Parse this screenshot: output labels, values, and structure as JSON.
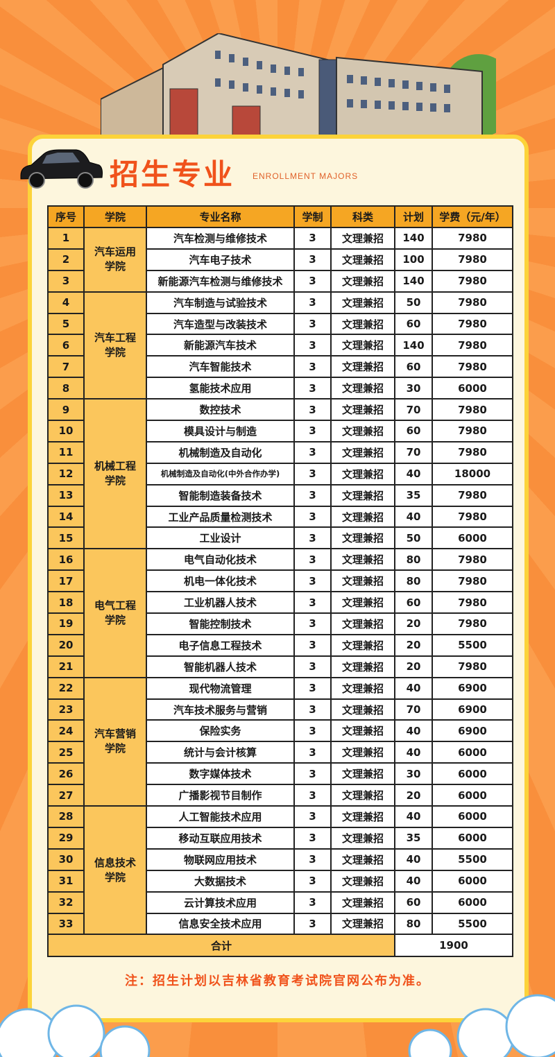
{
  "header": {
    "title": "招生专业",
    "subtitle": "ENROLLMENT MAJORS"
  },
  "table": {
    "columns": [
      "序号",
      "学院",
      "专业名称",
      "学制",
      "科类",
      "计划",
      "学费（元/年）"
    ],
    "colleges": [
      {
        "name": "汽车运用学院",
        "majors": [
          {
            "no": "1",
            "name": "汽车检测与维修技术",
            "years": "3",
            "category": "文理兼招",
            "plan": "140",
            "fee": "7980"
          },
          {
            "no": "2",
            "name": "汽车电子技术",
            "years": "3",
            "category": "文理兼招",
            "plan": "100",
            "fee": "7980"
          },
          {
            "no": "3",
            "name": "新能源汽车检测与维修技术",
            "years": "3",
            "category": "文理兼招",
            "plan": "140",
            "fee": "7980"
          }
        ]
      },
      {
        "name": "汽车工程学院",
        "majors": [
          {
            "no": "4",
            "name": "汽车制造与试验技术",
            "years": "3",
            "category": "文理兼招",
            "plan": "50",
            "fee": "7980"
          },
          {
            "no": "5",
            "name": "汽车造型与改装技术",
            "years": "3",
            "category": "文理兼招",
            "plan": "60",
            "fee": "7980"
          },
          {
            "no": "6",
            "name": "新能源汽车技术",
            "years": "3",
            "category": "文理兼招",
            "plan": "140",
            "fee": "7980"
          },
          {
            "no": "7",
            "name": "汽车智能技术",
            "years": "3",
            "category": "文理兼招",
            "plan": "60",
            "fee": "7980"
          },
          {
            "no": "8",
            "name": "氢能技术应用",
            "years": "3",
            "category": "文理兼招",
            "plan": "30",
            "fee": "6000"
          }
        ]
      },
      {
        "name": "机械工程学院",
        "majors": [
          {
            "no": "9",
            "name": "数控技术",
            "years": "3",
            "category": "文理兼招",
            "plan": "70",
            "fee": "7980"
          },
          {
            "no": "10",
            "name": "模具设计与制造",
            "years": "3",
            "category": "文理兼招",
            "plan": "60",
            "fee": "7980"
          },
          {
            "no": "11",
            "name": "机械制造及自动化",
            "years": "3",
            "category": "文理兼招",
            "plan": "70",
            "fee": "7980"
          },
          {
            "no": "12",
            "name": "机械制造及自动化(中外合作办学)",
            "years": "3",
            "category": "文理兼招",
            "plan": "40",
            "fee": "18000"
          },
          {
            "no": "13",
            "name": "智能制造装备技术",
            "years": "3",
            "category": "文理兼招",
            "plan": "35",
            "fee": "7980"
          },
          {
            "no": "14",
            "name": "工业产品质量检测技术",
            "years": "3",
            "category": "文理兼招",
            "plan": "40",
            "fee": "7980"
          },
          {
            "no": "15",
            "name": "工业设计",
            "years": "3",
            "category": "文理兼招",
            "plan": "50",
            "fee": "6000"
          }
        ]
      },
      {
        "name": "电气工程学院",
        "majors": [
          {
            "no": "16",
            "name": "电气自动化技术",
            "years": "3",
            "category": "文理兼招",
            "plan": "80",
            "fee": "7980"
          },
          {
            "no": "17",
            "name": "机电一体化技术",
            "years": "3",
            "category": "文理兼招",
            "plan": "80",
            "fee": "7980"
          },
          {
            "no": "18",
            "name": "工业机器人技术",
            "years": "3",
            "category": "文理兼招",
            "plan": "60",
            "fee": "7980"
          },
          {
            "no": "19",
            "name": "智能控制技术",
            "years": "3",
            "category": "文理兼招",
            "plan": "20",
            "fee": "7980"
          },
          {
            "no": "20",
            "name": "电子信息工程技术",
            "years": "3",
            "category": "文理兼招",
            "plan": "20",
            "fee": "5500"
          },
          {
            "no": "21",
            "name": "智能机器人技术",
            "years": "3",
            "category": "文理兼招",
            "plan": "20",
            "fee": "7980"
          }
        ]
      },
      {
        "name": "汽车营销学院",
        "majors": [
          {
            "no": "22",
            "name": "现代物流管理",
            "years": "3",
            "category": "文理兼招",
            "plan": "40",
            "fee": "6900"
          },
          {
            "no": "23",
            "name": "汽车技术服务与营销",
            "years": "3",
            "category": "文理兼招",
            "plan": "70",
            "fee": "6900"
          },
          {
            "no": "24",
            "name": "保险实务",
            "years": "3",
            "category": "文理兼招",
            "plan": "40",
            "fee": "6900"
          },
          {
            "no": "25",
            "name": "统计与会计核算",
            "years": "3",
            "category": "文理兼招",
            "plan": "40",
            "fee": "6000"
          },
          {
            "no": "26",
            "name": "数字媒体技术",
            "years": "3",
            "category": "文理兼招",
            "plan": "30",
            "fee": "6000"
          },
          {
            "no": "27",
            "name": "广播影视节目制作",
            "years": "3",
            "category": "文理兼招",
            "plan": "20",
            "fee": "6000"
          }
        ]
      },
      {
        "name": "信息技术学院",
        "majors": [
          {
            "no": "28",
            "name": "人工智能技术应用",
            "years": "3",
            "category": "文理兼招",
            "plan": "40",
            "fee": "6000"
          },
          {
            "no": "29",
            "name": "移动互联应用技术",
            "years": "3",
            "category": "文理兼招",
            "plan": "35",
            "fee": "6000"
          },
          {
            "no": "30",
            "name": "物联网应用技术",
            "years": "3",
            "category": "文理兼招",
            "plan": "40",
            "fee": "5500"
          },
          {
            "no": "31",
            "name": "大数据技术",
            "years": "3",
            "category": "文理兼招",
            "plan": "40",
            "fee": "6000"
          },
          {
            "no": "32",
            "name": "云计算技术应用",
            "years": "3",
            "category": "文理兼招",
            "plan": "60",
            "fee": "6000"
          },
          {
            "no": "33",
            "name": "信息安全技术应用",
            "years": "3",
            "category": "文理兼招",
            "plan": "80",
            "fee": "5500"
          }
        ]
      }
    ],
    "total_label": "合计",
    "total_value": "1900"
  },
  "note": "注：招生计划以吉林省教育考试院官网公布为准。",
  "colors": {
    "title": "#f0521b",
    "header_bg": "#f5a623",
    "cell_accent": "#fbc65c",
    "card_border": "#fcd33a",
    "background": "#f98f3c"
  }
}
